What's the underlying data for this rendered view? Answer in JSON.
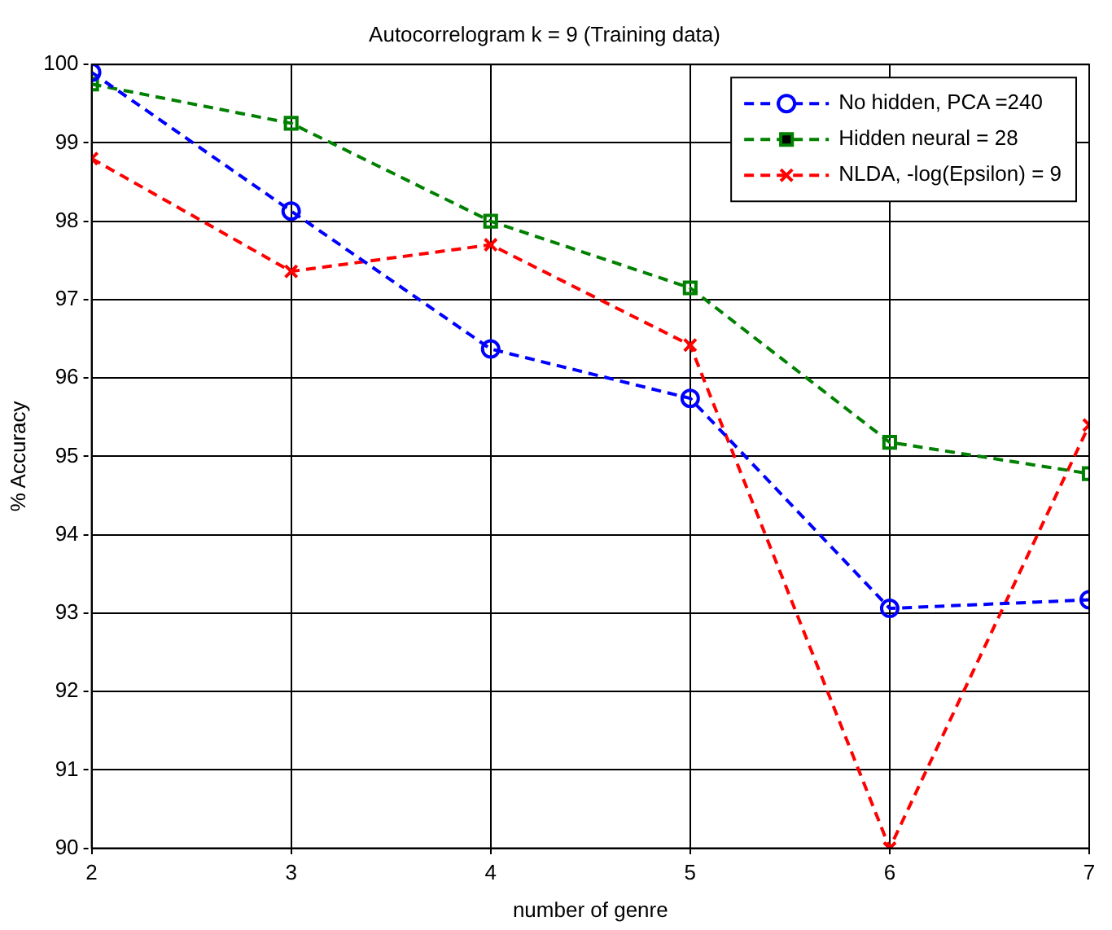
{
  "chart_data": {
    "type": "line",
    "title": "Autocorrelogram k = 9 (Training data)",
    "xlabel": "number of genre",
    "ylabel": "% Accuracy",
    "x": [
      2,
      3,
      4,
      5,
      6,
      7
    ],
    "series": [
      {
        "name": "No hidden, PCA =240",
        "color": "#0000ff",
        "marker": "circle",
        "values": [
          99.9,
          98.13,
          96.37,
          95.74,
          93.06,
          93.17
        ]
      },
      {
        "name": "Hidden neural = 28",
        "color": "#008000",
        "marker": "square",
        "values": [
          99.75,
          99.25,
          98.0,
          97.15,
          95.18,
          94.78
        ]
      },
      {
        "name": "NLDA, -log(Epsilon) = 9",
        "color": "#ff0000",
        "marker": "cross",
        "values": [
          98.8,
          97.36,
          97.7,
          96.42,
          90.0,
          95.4
        ]
      }
    ],
    "xlim": [
      2,
      7
    ],
    "xticks": [
      2,
      3,
      4,
      5,
      6,
      7
    ],
    "ylim": [
      90,
      100
    ],
    "yticks": [
      90,
      91,
      92,
      93,
      94,
      95,
      96,
      97,
      98,
      99,
      100
    ],
    "grid": true,
    "legend": "top right",
    "line_style": "dashed"
  }
}
